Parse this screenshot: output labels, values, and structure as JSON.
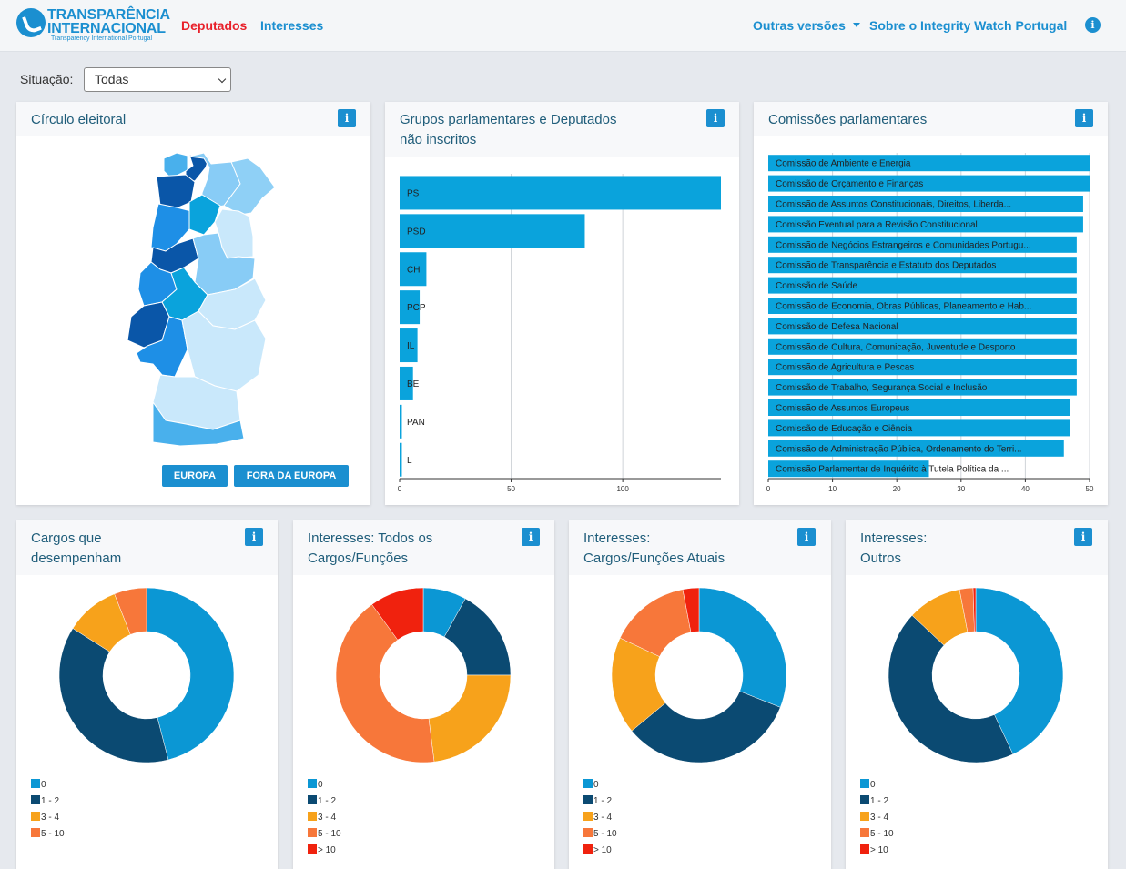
{
  "header": {
    "logo": {
      "line1": "TRANSPARÊNCIA",
      "line2": "INTERNACIONAL",
      "line3": "Transparency International Portugal"
    },
    "nav": [
      {
        "label": "Deputados",
        "color": "#e8202a"
      },
      {
        "label": "Interesses",
        "color": "#1b8fd0"
      }
    ],
    "right_nav": [
      {
        "label": "Outras versões"
      },
      {
        "label": "Sobre o Integrity Watch Portugal"
      }
    ]
  },
  "filter": {
    "label": "Situação:",
    "selected": "Todas"
  },
  "cards": {
    "circulo": {
      "title": "Círculo eleitoral",
      "buttons": [
        "EUROPA",
        "FORA DA EUROPA"
      ]
    },
    "grupos": {
      "title_line1": "Grupos parlamentares e Deputados",
      "title_line2": "não inscritos"
    },
    "comissoes": {
      "title": "Comissões parlamentares"
    },
    "cargos": {
      "title_line1": "Cargos que",
      "title_line2": "desempenham"
    },
    "int_todos": {
      "title_line1": "Interesses: Todos os",
      "title_line2": "Cargos/Funções"
    },
    "int_atuais": {
      "title_line1": "Interesses:",
      "title_line2": "Cargos/Funções Atuais"
    },
    "int_outros": {
      "title_line1": "Interesses:",
      "title_line2": "Outros"
    }
  },
  "chart_data": [
    {
      "type": "bar",
      "orientation": "horizontal",
      "categories": [
        "PS",
        "PSD",
        "CH",
        "PCP",
        "IL",
        "BE",
        "PAN",
        "L"
      ],
      "values": [
        144,
        83,
        12,
        9,
        8,
        6,
        1,
        1
      ],
      "xlim": [
        0,
        144
      ],
      "xticks": [
        0,
        50,
        100
      ],
      "grid": true,
      "color": "#0aa3dc"
    },
    {
      "type": "bar",
      "orientation": "horizontal",
      "categories": [
        "Comissão de Ambiente e Energia",
        "Comissão de Orçamento e Finanças",
        "Comissão de Assuntos Constitucionais, Direitos, Liberda...",
        "Comissão Eventual para a Revisão Constitucional",
        "Comissão de Negócios Estrangeiros e Comunidades Portugu...",
        "Comissão de Transparência e Estatuto dos Deputados",
        "Comissão de Saúde",
        "Comissão de Economia, Obras Públicas, Planeamento e Hab...",
        "Comissão de Defesa Nacional",
        "Comissão de Cultura, Comunicação, Juventude e Desporto",
        "Comissão de Agricultura e Pescas",
        "Comissão de Trabalho, Segurança Social e Inclusão",
        "Comissão de Assuntos Europeus",
        "Comissão de Educação e Ciência",
        "Comissão de Administração Pública, Ordenamento do Terri...",
        "Comissão Parlamentar de Inquérito à Tutela Política da ..."
      ],
      "values": [
        50,
        50,
        49,
        49,
        48,
        48,
        48,
        48,
        48,
        48,
        48,
        48,
        47,
        47,
        46,
        25
      ],
      "xlim": [
        0,
        50
      ],
      "xticks": [
        0,
        10,
        20,
        30,
        40,
        50
      ],
      "grid": true,
      "color": "#0aa3dc"
    },
    {
      "type": "pie",
      "donut": true,
      "categories": [
        "0",
        "1 - 2",
        "3 - 4",
        "5 - 10"
      ],
      "values": [
        46,
        38,
        10,
        6
      ],
      "colors": [
        "#0b97d4",
        "#0b4a72",
        "#f7a21b",
        "#f7773a"
      ]
    },
    {
      "type": "pie",
      "donut": true,
      "categories": [
        "0",
        "1 - 2",
        "3 - 4",
        "5 - 10",
        "> 10"
      ],
      "values": [
        8,
        17,
        23,
        42,
        10
      ],
      "colors": [
        "#0b97d4",
        "#0b4a72",
        "#f7a21b",
        "#f7773a",
        "#f0220e"
      ]
    },
    {
      "type": "pie",
      "donut": true,
      "categories": [
        "0",
        "1 - 2",
        "3 - 4",
        "5 - 10",
        "> 10"
      ],
      "values": [
        31,
        33,
        18,
        15,
        3
      ],
      "colors": [
        "#0b97d4",
        "#0b4a72",
        "#f7a21b",
        "#f7773a",
        "#f0220e"
      ]
    },
    {
      "type": "pie",
      "donut": true,
      "categories": [
        "0",
        "1 - 2",
        "3 - 4",
        "5 - 10",
        "> 10"
      ],
      "values": [
        43,
        44,
        10,
        2.5,
        0.5
      ],
      "colors": [
        "#0b97d4",
        "#0b4a72",
        "#f7a21b",
        "#f7773a",
        "#f0220e"
      ]
    }
  ]
}
